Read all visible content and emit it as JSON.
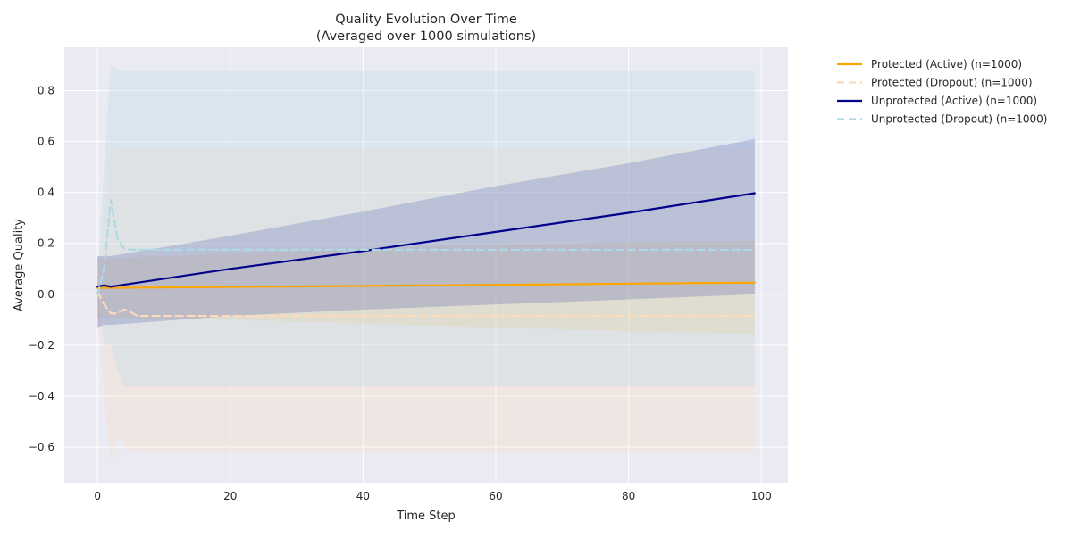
{
  "chart_data": {
    "type": "line",
    "title": "Quality Evolution Over Time",
    "subtitle": "(Averaged over 1000 simulations)",
    "xlabel": "Time Step",
    "ylabel": "Average Quality",
    "xlim": [
      -5,
      104
    ],
    "ylim": [
      -0.74,
      0.97
    ],
    "xticks": [
      0,
      20,
      40,
      60,
      80,
      100
    ],
    "yticks": [
      -0.6,
      -0.4,
      -0.2,
      0.0,
      0.2,
      0.4,
      0.6,
      0.8
    ],
    "xtick_labels": [
      "0",
      "20",
      "40",
      "60",
      "80",
      "100"
    ],
    "ytick_labels": [
      "−0.6",
      "−0.4",
      "−0.2",
      "0.0",
      "0.2",
      "0.4",
      "0.6",
      "0.8"
    ],
    "grid": true,
    "legend_position": "outside-right",
    "background": "#EAEAF2",
    "series": [
      {
        "name": "Protected (Active) (n=1000)",
        "color": "#FFA500",
        "style": "solid",
        "band_opacity": 0.15,
        "x": [
          0,
          20,
          40,
          60,
          80,
          99
        ],
        "y": [
          0.025,
          0.029,
          0.033,
          0.037,
          0.042,
          0.046
        ],
        "lower": [
          -0.09,
          -0.1,
          -0.115,
          -0.13,
          -0.145,
          -0.155
        ],
        "upper": [
          0.14,
          0.16,
          0.18,
          0.195,
          0.205,
          0.21
        ]
      },
      {
        "name": "Protected (Dropout) (n=1000)",
        "color": "#FFDAB9",
        "style": "dashed",
        "band_opacity": 0.25,
        "x": [
          0,
          1,
          2,
          3,
          4,
          5,
          6,
          8,
          20,
          40,
          60,
          80,
          99
        ],
        "y": [
          0.01,
          -0.04,
          -0.075,
          -0.075,
          -0.06,
          -0.07,
          -0.085,
          -0.085,
          -0.085,
          -0.085,
          -0.085,
          -0.085,
          -0.085
        ],
        "lower": [
          0.0,
          -0.4,
          -0.66,
          -0.55,
          -0.6,
          -0.61,
          -0.62,
          -0.62,
          -0.62,
          -0.62,
          -0.62,
          -0.62,
          -0.62
        ],
        "upper": [
          0.05,
          0.3,
          0.6,
          0.57,
          0.57,
          0.57,
          0.57,
          0.57,
          0.57,
          0.57,
          0.57,
          0.57,
          0.57
        ]
      },
      {
        "name": "Unprotected (Active) (n=1000)",
        "color": "#00008B",
        "style": "solid",
        "band_opacity": 0.2,
        "x": [
          0,
          1,
          2,
          20,
          40,
          60,
          80,
          99
        ],
        "y": [
          0.03,
          0.035,
          0.03,
          0.1,
          0.17,
          0.245,
          0.32,
          0.397
        ],
        "lower": [
          -0.13,
          -0.12,
          -0.12,
          -0.085,
          -0.06,
          -0.04,
          -0.02,
          0.0
        ],
        "upper": [
          0.15,
          0.15,
          0.15,
          0.23,
          0.325,
          0.425,
          0.515,
          0.61
        ]
      },
      {
        "name": "Unprotected (Dropout) (n=1000)",
        "color": "#ADD8E6",
        "style": "dashed",
        "band_opacity": 0.25,
        "x": [
          0,
          1,
          2,
          3,
          4,
          5,
          6,
          20,
          40,
          60,
          80,
          99
        ],
        "y": [
          0.0,
          0.1,
          0.37,
          0.22,
          0.18,
          0.175,
          0.175,
          0.175,
          0.175,
          0.175,
          0.175,
          0.175
        ],
        "lower": [
          0.0,
          -0.2,
          -0.2,
          -0.3,
          -0.36,
          -0.36,
          -0.36,
          -0.36,
          -0.36,
          -0.36,
          -0.36,
          -0.36
        ],
        "upper": [
          0.05,
          0.5,
          0.9,
          0.885,
          0.875,
          0.875,
          0.875,
          0.875,
          0.875,
          0.875,
          0.875,
          0.875
        ]
      }
    ]
  }
}
